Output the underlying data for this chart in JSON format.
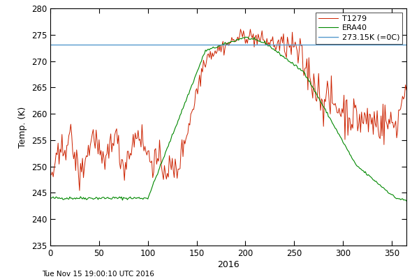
{
  "title": "",
  "xlabel": "2016",
  "ylabel": "Temp. (K)",
  "xlim": [
    0,
    365
  ],
  "ylim": [
    235,
    280
  ],
  "yticks": [
    235,
    240,
    245,
    250,
    255,
    260,
    265,
    270,
    275,
    280
  ],
  "xticks": [
    0,
    50,
    100,
    150,
    200,
    250,
    300,
    350
  ],
  "freeze_line": 273.15,
  "freeze_color": "#5599cc",
  "t1279_color": "#cc2200",
  "era40_color": "#008800",
  "legend_labels": [
    "T1279",
    "ERA40",
    "273.15K (=0C)"
  ],
  "timestamp": "Tue Nov 15 19:00:10 UTC 2016",
  "background_color": "#ffffff",
  "figsize": [
    6.0,
    4.0
  ],
  "dpi": 100
}
